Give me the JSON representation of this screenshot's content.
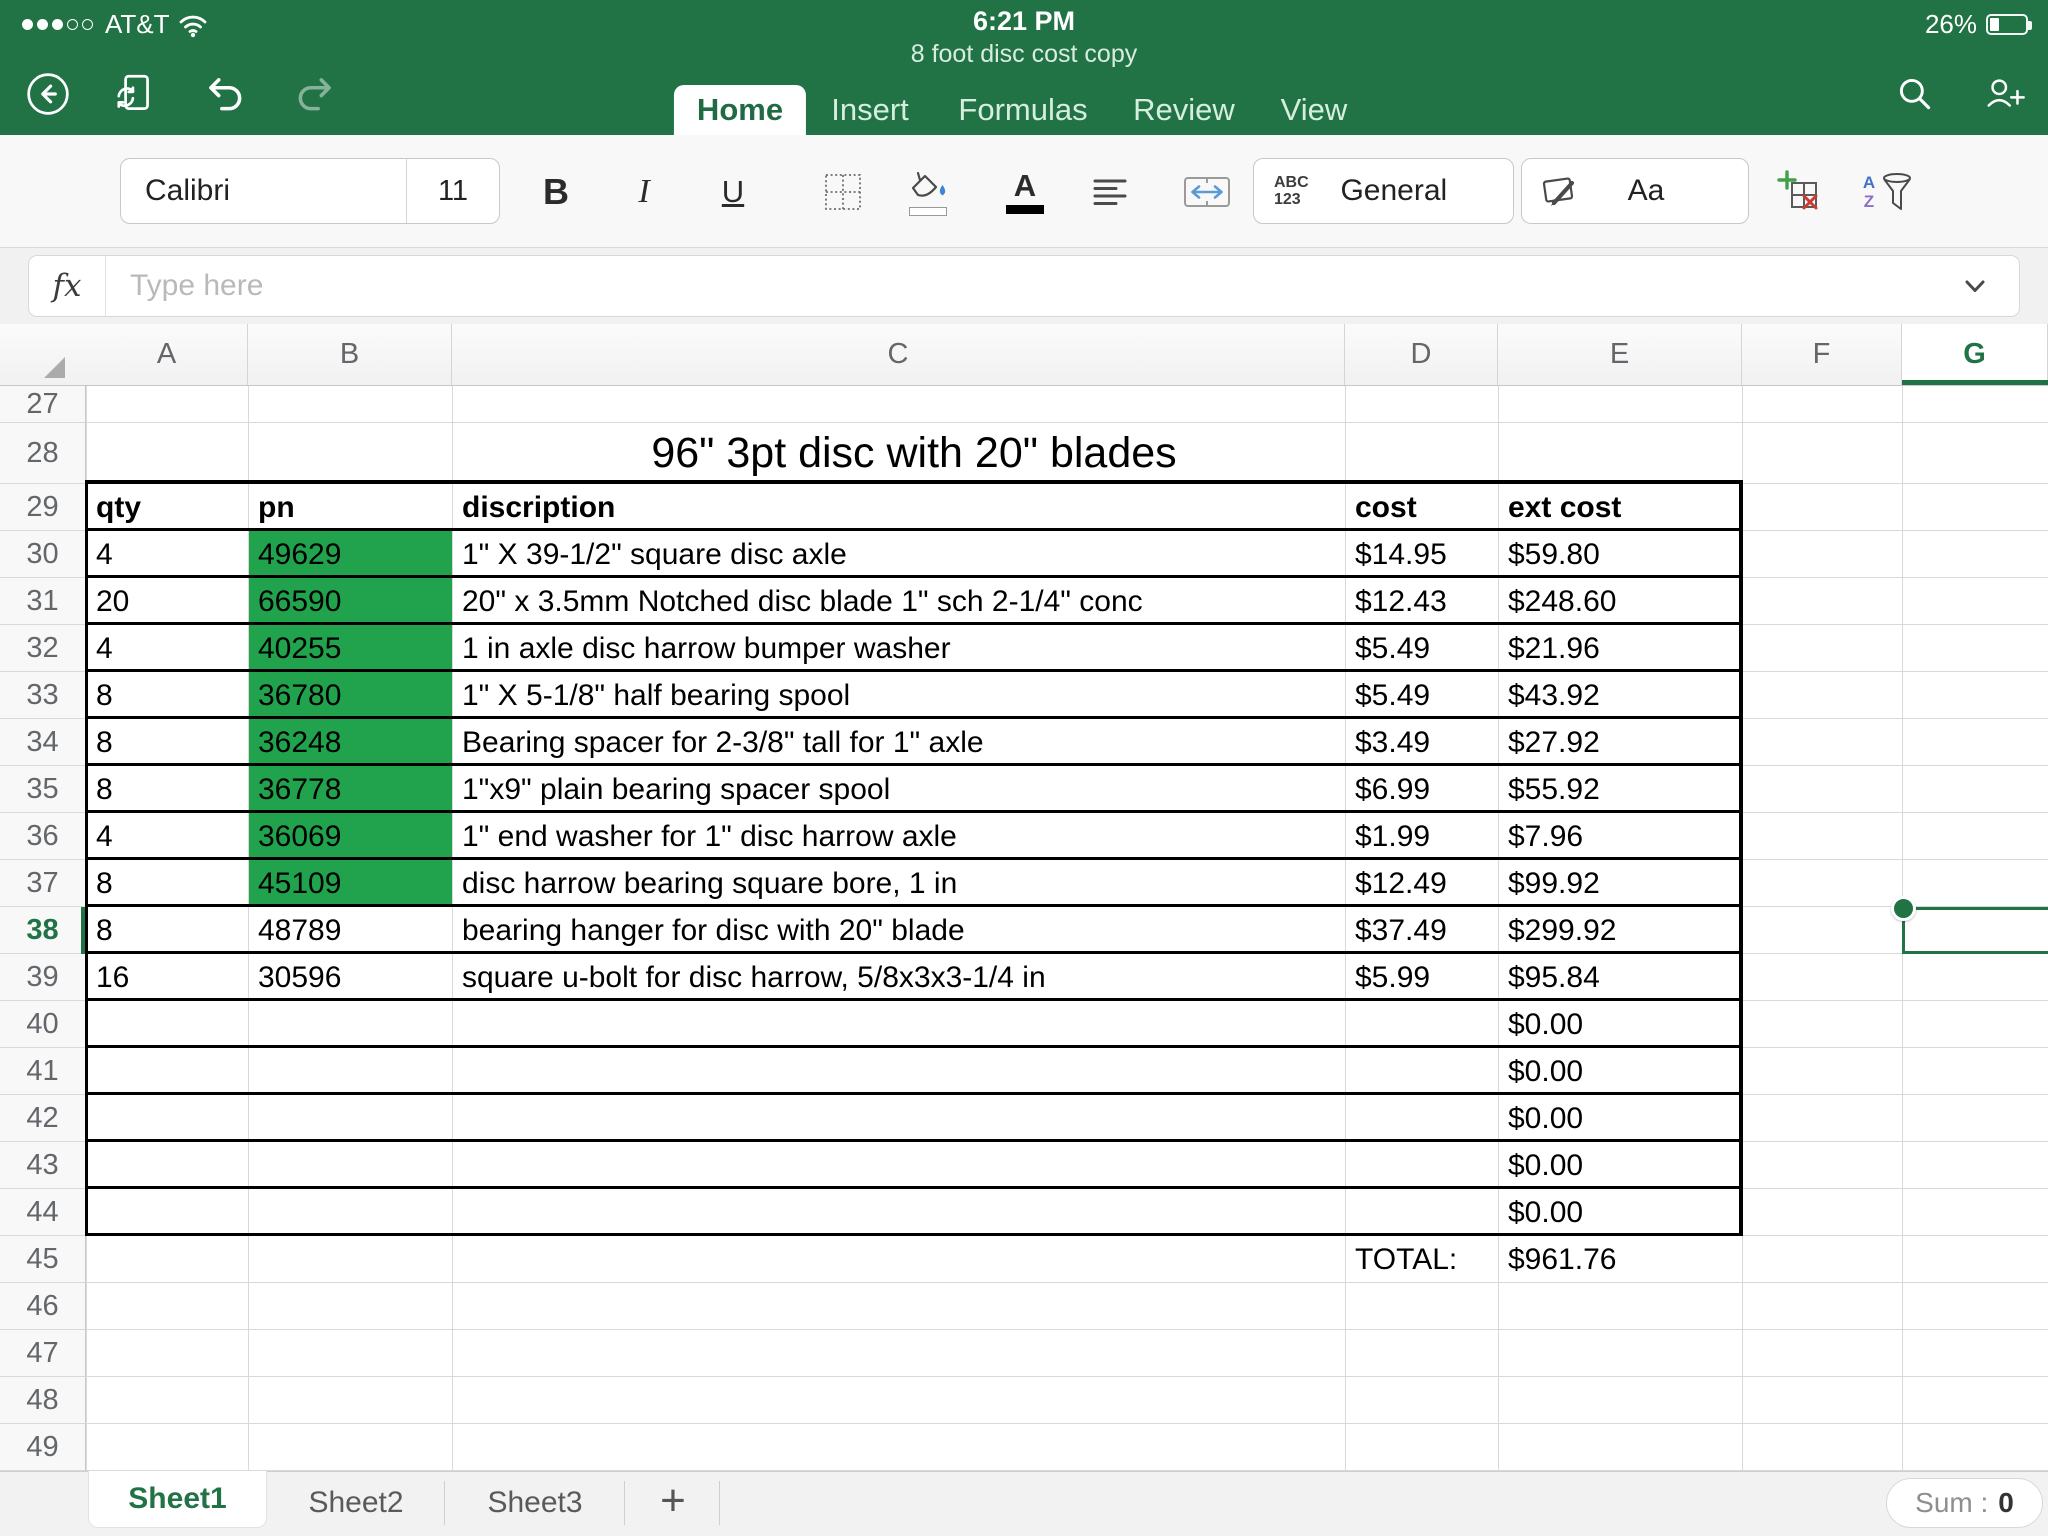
{
  "status_bar": {
    "carrier": "AT&T",
    "signal_dots_filled": 3,
    "signal_dots_total": 5,
    "time": "6:21 PM",
    "doc_title": "8 foot disc cost copy",
    "battery_percent": "26%"
  },
  "ribbon": {
    "tabs": [
      {
        "label": "Home",
        "active": true
      },
      {
        "label": "Insert",
        "active": false
      },
      {
        "label": "Formulas",
        "active": false
      },
      {
        "label": "Review",
        "active": false
      },
      {
        "label": "View",
        "active": false
      }
    ],
    "icons": [
      "back-icon",
      "file-sync-icon",
      "undo-icon",
      "redo-icon",
      "search-icon",
      "add-people-icon"
    ]
  },
  "format_bar": {
    "font_name": "Calibri",
    "font_size": "11",
    "bold_label": "B",
    "italic_label": "I",
    "underline_label": "U",
    "font_color_label": "A",
    "abc_label": "ABC",
    "num_label": "123",
    "number_format": "General",
    "styles_label": "Aa",
    "sort_a": "A",
    "sort_z": "Z"
  },
  "formula_bar": {
    "fx_label": "fx",
    "placeholder": "Type here"
  },
  "sheet": {
    "col_headers": [
      "A",
      "B",
      "C",
      "D",
      "E",
      "F",
      "G"
    ],
    "row_start": 27,
    "row_end": 49,
    "selected_cell": "G38",
    "selected_row": 38,
    "selected_col": "G",
    "title": "96\" 3pt disc with 20\" blades",
    "headers": {
      "qty": "qty",
      "pn": "pn",
      "desc": "discription",
      "cost": "cost",
      "ext": "ext cost"
    },
    "items": [
      {
        "row": 30,
        "qty": "4",
        "pn": "49629",
        "desc": "1\" X 39-1/2\" square disc axle",
        "cost": "$14.95",
        "ext": "$59.80",
        "pn_filled": true
      },
      {
        "row": 31,
        "qty": "20",
        "pn": "66590",
        "desc": "20\" x 3.5mm Notched disc blade 1\" sch 2-1/4\" conc",
        "cost": "$12.43",
        "ext": "$248.60",
        "pn_filled": true
      },
      {
        "row": 32,
        "qty": "4",
        "pn": "40255",
        "desc": "1 in axle disc harrow bumper washer",
        "cost": "$5.49",
        "ext": "$21.96",
        "pn_filled": true
      },
      {
        "row": 33,
        "qty": "8",
        "pn": "36780",
        "desc": "1\" X 5-1/8\" half bearing spool",
        "cost": "$5.49",
        "ext": "$43.92",
        "pn_filled": true
      },
      {
        "row": 34,
        "qty": "8",
        "pn": "36248",
        "desc": "Bearing spacer for 2-3/8\" tall for 1\" axle",
        "cost": "$3.49",
        "ext": "$27.92",
        "pn_filled": true
      },
      {
        "row": 35,
        "qty": "8",
        "pn": "36778",
        "desc": "1\"x9\" plain bearing spacer spool",
        "cost": "$6.99",
        "ext": "$55.92",
        "pn_filled": true
      },
      {
        "row": 36,
        "qty": "4",
        "pn": "36069",
        "desc": "1\" end washer for 1\" disc harrow axle",
        "cost": "$1.99",
        "ext": "$7.96",
        "pn_filled": true
      },
      {
        "row": 37,
        "qty": "8",
        "pn": "45109",
        "desc": "disc harrow bearing square bore, 1 in",
        "cost": "$12.49",
        "ext": "$99.92",
        "pn_filled": true
      },
      {
        "row": 38,
        "qty": "8",
        "pn": "48789",
        "desc": "bearing hanger for disc with 20\" blade",
        "cost": "$37.49",
        "ext": "$299.92",
        "pn_filled": false
      },
      {
        "row": 39,
        "qty": "16",
        "pn": "30596",
        "desc": "square u-bolt for disc harrow, 5/8x3x3-1/4 in",
        "cost": "$5.99",
        "ext": "$95.84",
        "pn_filled": false
      }
    ],
    "zero_rows": [
      {
        "row": 40,
        "ext": "$0.00"
      },
      {
        "row": 41,
        "ext": "$0.00"
      },
      {
        "row": 42,
        "ext": "$0.00"
      },
      {
        "row": 43,
        "ext": "$0.00"
      },
      {
        "row": 44,
        "ext": "$0.00"
      }
    ],
    "total_label": "TOTAL:",
    "total_value": "$961.76"
  },
  "sheet_bar": {
    "tabs": [
      "Sheet1",
      "Sheet2",
      "Sheet3"
    ],
    "active_tab": "Sheet1",
    "add_label": "+",
    "sum_label": "Sum :",
    "sum_value": "0"
  },
  "colors": {
    "header_green": "#217346",
    "pn_fill_green": "#21a24d",
    "selection_green": "#217346"
  }
}
